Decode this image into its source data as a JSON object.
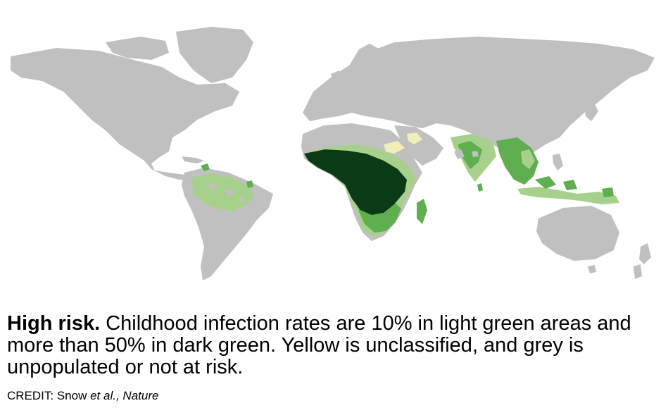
{
  "caption": {
    "lead": "High risk.",
    "text": "Childhood infection rates are 10% in light green areas and more than 50% in dark green. Yellow is unclassified, and grey is unpopulated or not at risk."
  },
  "credit": {
    "prefix": "CREDIT: Snow ",
    "etal": "et al.,",
    "journal": "Nature"
  },
  "legend_colors": {
    "not_at_risk": "#c0c0c0",
    "light_green": "#a8d08d",
    "mid_green": "#5fae4f",
    "dark_green": "#0b3a16",
    "unclassified_yellow": "#f1efb8"
  }
}
